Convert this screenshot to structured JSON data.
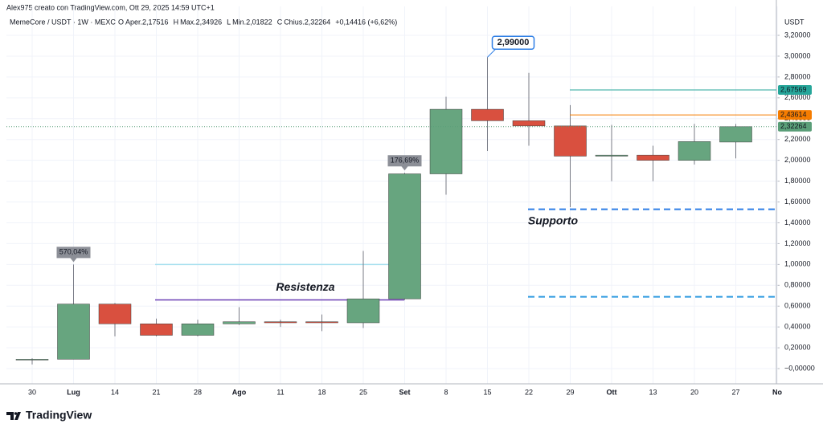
{
  "header": {
    "credit": "Alex975 creato con TradingView.com, Ott 29, 2025 14:59 UTC+1"
  },
  "footer": {
    "brand": "TradingView"
  },
  "chart_data": {
    "type": "candlestick",
    "title": "MemeCore / USDT · 1W · MEXC",
    "legend": [
      "O",
      "Aper.2,17516",
      "H",
      "Max.2,34926",
      "L",
      "Min.2,01822",
      "C",
      "Chius.2,32264",
      "+0,14416 (+6,62%)"
    ],
    "y_axis_label": "USDT",
    "categories": [
      "30",
      "Lug",
      "14",
      "21",
      "28",
      "Ago",
      "11",
      "18",
      "25",
      "Set",
      "8",
      "15",
      "22",
      "29",
      "Ott",
      "13",
      "20",
      "27",
      "No"
    ],
    "open": [
      0.09,
      0.09,
      0.62,
      0.43,
      0.32,
      0.43,
      0.45,
      0.45,
      0.44,
      0.67,
      1.87,
      2.49,
      2.38,
      2.33,
      2.04,
      2.05,
      2.0,
      2.17516,
      null
    ],
    "high": [
      0.1,
      1.0,
      0.63,
      0.48,
      0.47,
      0.59,
      0.47,
      0.52,
      1.13,
      1.88,
      2.61,
      2.99,
      2.84,
      2.53,
      2.34,
      2.14,
      2.35,
      2.34926,
      null
    ],
    "low": [
      0.04,
      0.09,
      0.31,
      0.31,
      0.31,
      0.42,
      0.4,
      0.36,
      0.39,
      0.66,
      1.67,
      2.09,
      2.14,
      1.55,
      1.8,
      1.8,
      1.96,
      2.01822,
      null
    ],
    "close": [
      0.09,
      0.62,
      0.43,
      0.32,
      0.43,
      0.45,
      0.44,
      0.44,
      0.67,
      1.87,
      2.49,
      2.38,
      2.33,
      2.04,
      2.05,
      2.0,
      2.18,
      2.32264,
      null
    ],
    "up_color": "#67a57f",
    "down_color": "#d9503f",
    "ylim": [
      -0.146,
      3.385
    ],
    "yticks": [
      {
        "value": 0,
        "label": "−0,00000"
      },
      {
        "value": 0.2,
        "label": "0,20000"
      },
      {
        "value": 0.4,
        "label": "0,40000"
      },
      {
        "value": 0.6,
        "label": "0,60000"
      },
      {
        "value": 0.8,
        "label": "0,80000"
      },
      {
        "value": 1.0,
        "label": "1,00000"
      },
      {
        "value": 1.2,
        "label": "1,20000"
      },
      {
        "value": 1.4,
        "label": "1,40000"
      },
      {
        "value": 1.6,
        "label": "1,60000"
      },
      {
        "value": 1.8,
        "label": "1,80000"
      },
      {
        "value": 2.0,
        "label": "2,00000"
      },
      {
        "value": 2.2,
        "label": "2,20000"
      },
      {
        "value": 2.4,
        "label": "2,40000"
      },
      {
        "value": 2.6,
        "label": "2,60000"
      },
      {
        "value": 2.8,
        "label": "2,80000"
      },
      {
        "value": 3.0,
        "label": "3,00000"
      },
      {
        "value": 3.2,
        "label": "3,20000"
      }
    ],
    "grid": true,
    "price_tags": [
      {
        "value": 2.67569,
        "label": "2,67569",
        "color": "#26a69a"
      },
      {
        "value": 2.43614,
        "label": "2,43614",
        "color": "#f57c00"
      },
      {
        "value": 2.32264,
        "label": "2,32264",
        "color": "#5a9e78"
      }
    ],
    "levels": [
      {
        "value": 1.0,
        "color": "#a8e0ef"
      },
      {
        "value": 0.66,
        "label": "Resistenza",
        "color": "#6a3fb5"
      },
      {
        "value": 1.53,
        "label": "Supporto",
        "color": "#2f7fe6"
      },
      {
        "value": 0.69,
        "color": "#2f9ae0"
      }
    ],
    "annotations": [
      {
        "label": "570,04%",
        "value": 1.0
      },
      {
        "label": "176,69%",
        "value": 1.88
      },
      {
        "label": "2,99000",
        "value": 2.99
      }
    ]
  }
}
